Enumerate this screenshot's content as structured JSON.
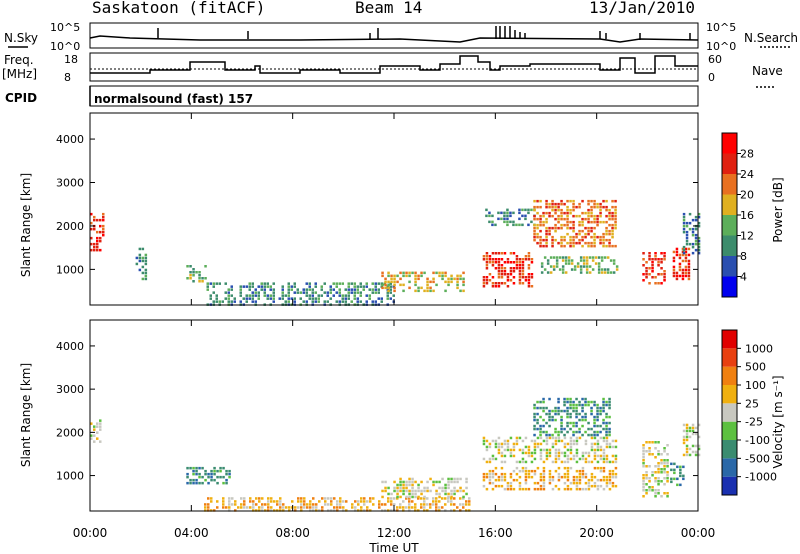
{
  "header": {
    "station": "Saskatoon (fitACF)",
    "beam": "Beam 14",
    "date": "13/Jan/2010"
  },
  "params": {
    "nsky_label": "N.Sky",
    "nsky_ticks": [
      "10^5",
      "10^0"
    ],
    "nsearch_label": "N.Search",
    "nsearch_ticks": [
      "10^5",
      "10^0"
    ],
    "freq_label": "Freq.",
    "freq_unit": "[MHz]",
    "freq_ticks": [
      "18",
      "8"
    ],
    "nave_label": "Nave",
    "nave_ticks": [
      "60",
      "0"
    ],
    "cpid_label": "CPID",
    "cpid_value": "normalsound (fast) 157"
  },
  "axes": {
    "xlabel": "Time UT",
    "x_ticks": [
      "00:00",
      "04:00",
      "08:00",
      "12:00",
      "16:00",
      "20:00",
      "00:00"
    ],
    "ylabel": "Slant Range [km]",
    "y_ticks": [
      "1000",
      "2000",
      "3000",
      "4000"
    ]
  },
  "power_scale": {
    "label": "Power [dB]",
    "ticks": [
      "4",
      "8",
      "12",
      "16",
      "20",
      "24",
      "28"
    ],
    "colors": [
      "#0000ee",
      "#2a4fb0",
      "#3c8c6c",
      "#5cae5a",
      "#e0b020",
      "#e87020",
      "#e02010",
      "#ff0000"
    ]
  },
  "velocity_scale": {
    "label": "Velocity [m s⁻¹]",
    "ticks": [
      "1000",
      "500",
      "100",
      "25",
      "-25",
      "-100",
      "-500",
      "-1000"
    ],
    "colors": [
      "#1a30b0",
      "#2a68a8",
      "#3a8c70",
      "#5cc040",
      "#c8c8c0",
      "#f0b010",
      "#f08010",
      "#e84010",
      "#e00000"
    ]
  },
  "chart_data": [
    {
      "type": "heatmap",
      "title": "",
      "xlabel": "",
      "ylabel": "Slant Range [km]",
      "xlim": [
        0,
        24
      ],
      "ylim": [
        180,
        4600
      ],
      "colorbar": "Power [dB]",
      "regions": [
        {
          "t0": 0.0,
          "t1": 0.5,
          "r0": 1400,
          "r1": 2300,
          "level": 6
        },
        {
          "t0": 1.8,
          "t1": 2.2,
          "r0": 800,
          "r1": 1500,
          "level": 2
        },
        {
          "t0": 3.8,
          "t1": 4.6,
          "r0": 700,
          "r1": 1100,
          "level": 3
        },
        {
          "t0": 4.6,
          "t1": 12.0,
          "r0": 200,
          "r1": 700,
          "level": 2
        },
        {
          "t0": 11.5,
          "t1": 14.8,
          "r0": 500,
          "r1": 950,
          "level": 4
        },
        {
          "t0": 15.5,
          "t1": 17.5,
          "r0": 600,
          "r1": 1400,
          "level": 6
        },
        {
          "t0": 15.6,
          "t1": 17.5,
          "r0": 2000,
          "r1": 2400,
          "level": 2
        },
        {
          "t0": 17.5,
          "t1": 20.8,
          "r0": 1500,
          "r1": 2600,
          "level": 5
        },
        {
          "t0": 17.8,
          "t1": 20.8,
          "r0": 900,
          "r1": 1300,
          "level": 3
        },
        {
          "t0": 21.8,
          "t1": 22.7,
          "r0": 700,
          "r1": 1400,
          "level": 6
        },
        {
          "t0": 23.0,
          "t1": 23.6,
          "r0": 800,
          "r1": 1500,
          "level": 6
        },
        {
          "t0": 23.4,
          "t1": 24.0,
          "r0": 1400,
          "r1": 2300,
          "level": 2
        }
      ]
    },
    {
      "type": "heatmap",
      "title": "",
      "xlabel": "Time UT",
      "ylabel": "Slant Range [km]",
      "xlim": [
        0,
        24
      ],
      "ylim": [
        180,
        4600
      ],
      "colorbar": "Velocity [m s⁻¹]",
      "regions": [
        {
          "t0": 0.0,
          "t1": 0.4,
          "r0": 1800,
          "r1": 2300,
          "level": 4
        },
        {
          "t0": 3.8,
          "t1": 5.5,
          "r0": 800,
          "r1": 1200,
          "level": 2
        },
        {
          "t0": 4.5,
          "t1": 15.0,
          "r0": 200,
          "r1": 500,
          "level": 5
        },
        {
          "t0": 11.5,
          "t1": 14.9,
          "r0": 500,
          "r1": 950,
          "level": 4
        },
        {
          "t0": 15.5,
          "t1": 20.8,
          "r0": 700,
          "r1": 1200,
          "level": 5
        },
        {
          "t0": 15.5,
          "t1": 20.8,
          "r0": 1300,
          "r1": 1900,
          "level": 4
        },
        {
          "t0": 17.5,
          "t1": 20.5,
          "r0": 1900,
          "r1": 2800,
          "level": 2
        },
        {
          "t0": 21.8,
          "t1": 22.8,
          "r0": 500,
          "r1": 1800,
          "level": 4
        },
        {
          "t0": 22.9,
          "t1": 23.4,
          "r0": 800,
          "r1": 1300,
          "level": 2
        },
        {
          "t0": 23.4,
          "t1": 24.0,
          "r0": 1500,
          "r1": 2200,
          "level": 4
        }
      ]
    }
  ]
}
